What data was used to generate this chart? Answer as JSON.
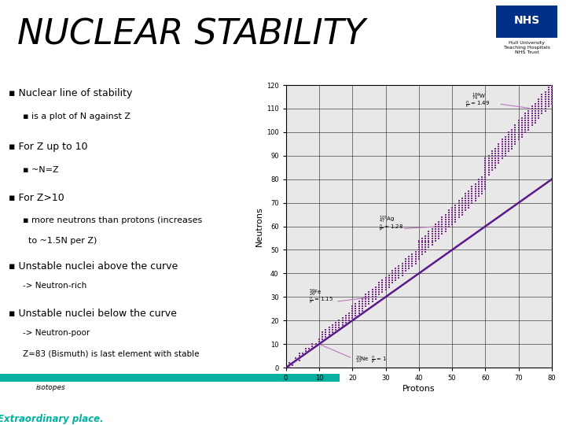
{
  "title": "NUCLEAR STABILITY",
  "title_fontsize": 32,
  "background_color": "#ffffff",
  "footer_bg": "#4a6074",
  "footer_teal": "#00b0a0",
  "chart_xlim": [
    0,
    80
  ],
  "chart_ylim": [
    0,
    120
  ],
  "chart_xlabel": "Protons",
  "chart_ylabel": "Neutrons",
  "chart_xticks": [
    0,
    10,
    20,
    30,
    40,
    50,
    60,
    70,
    80
  ],
  "chart_yticks": [
    0,
    10,
    20,
    30,
    40,
    50,
    60,
    70,
    80,
    90,
    100,
    110,
    120
  ],
  "dot_color": "#7b2d8b",
  "line_color": "#5b1a8b",
  "annotation_color": "#bb77bb",
  "chart_bg": "#e8e8e8"
}
